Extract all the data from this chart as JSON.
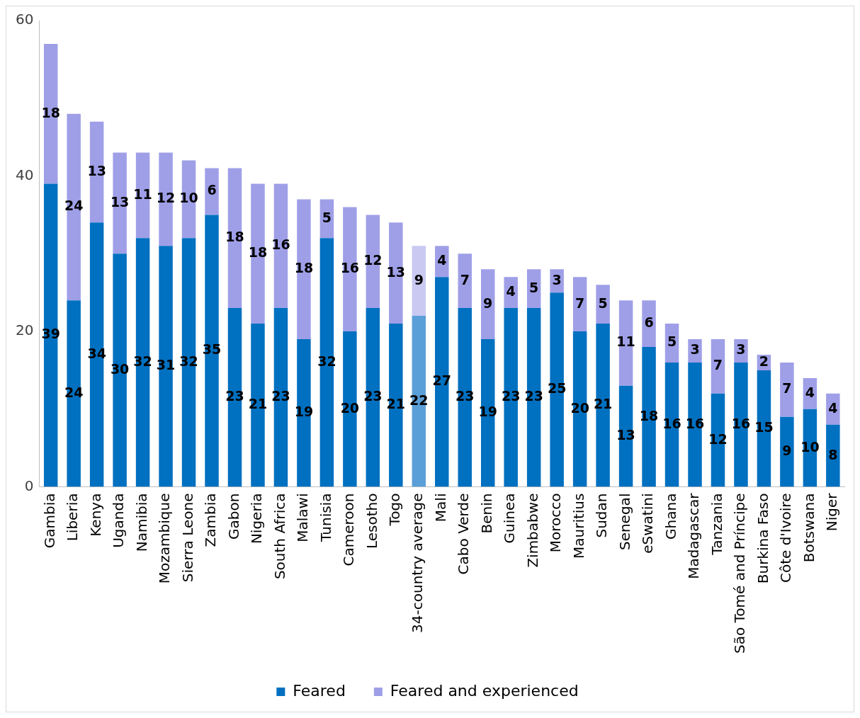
{
  "chart_data": {
    "type": "bar",
    "stacked": true,
    "categories": [
      "Gambia",
      "Liberia",
      "Kenya",
      "Uganda",
      "Namibia",
      "Mozambique",
      "Sierra Leone",
      "Zambia",
      "Gabon",
      "Nigeria",
      "South Africa",
      "Malawi",
      "Tunisia",
      "Cameroon",
      "Lesotho",
      "Togo",
      "34-country average",
      "Mali",
      "Cabo Verde",
      "Benin",
      "Guinea",
      "Zimbabwe",
      "Morocco",
      "Mauritius",
      "Sudan",
      "Senegal",
      "eSwatini",
      "Ghana",
      "Madagascar",
      "Tanzania",
      "São Tomé and Príncipe",
      "Burkina Faso",
      "Côte d'Ivoire",
      "Botswana",
      "Niger"
    ],
    "series": [
      {
        "name": "Feared",
        "color": "#0070c0",
        "colors": [
          "#0070c0",
          "#0070c0",
          "#0070c0",
          "#0070c0",
          "#0070c0",
          "#0070c0",
          "#0070c0",
          "#0070c0",
          "#0070c0",
          "#0070c0",
          "#0070c0",
          "#0070c0",
          "#0070c0",
          "#0070c0",
          "#0070c0",
          "#0070c0",
          "#5b9fd8",
          "#0070c0",
          "#0070c0",
          "#0070c0",
          "#0070c0",
          "#0070c0",
          "#0070c0",
          "#0070c0",
          "#0070c0",
          "#0070c0",
          "#0070c0",
          "#0070c0",
          "#0070c0",
          "#0070c0",
          "#0070c0",
          "#0070c0",
          "#0070c0",
          "#0070c0",
          "#0070c0"
        ],
        "values": [
          39,
          24,
          34,
          30,
          32,
          31,
          32,
          35,
          23,
          21,
          23,
          19,
          32,
          20,
          23,
          21,
          22,
          27,
          23,
          19,
          23,
          23,
          25,
          20,
          21,
          13,
          18,
          16,
          16,
          12,
          16,
          15,
          9,
          10,
          8
        ]
      },
      {
        "name": "Feared and experienced",
        "color": "#9f9fe8",
        "colors": [
          "#9f9fe8",
          "#9f9fe8",
          "#9f9fe8",
          "#9f9fe8",
          "#9f9fe8",
          "#9f9fe8",
          "#9f9fe8",
          "#9f9fe8",
          "#9f9fe8",
          "#9f9fe8",
          "#9f9fe8",
          "#9f9fe8",
          "#9f9fe8",
          "#9f9fe8",
          "#9f9fe8",
          "#9f9fe8",
          "#c9c9f2",
          "#9f9fe8",
          "#9f9fe8",
          "#9f9fe8",
          "#9f9fe8",
          "#9f9fe8",
          "#9f9fe8",
          "#9f9fe8",
          "#9f9fe8",
          "#9f9fe8",
          "#9f9fe8",
          "#9f9fe8",
          "#9f9fe8",
          "#9f9fe8",
          "#9f9fe8",
          "#9f9fe8",
          "#9f9fe8",
          "#9f9fe8",
          "#9f9fe8"
        ],
        "values": [
          18,
          24,
          13,
          13,
          11,
          12,
          10,
          6,
          18,
          18,
          16,
          18,
          5,
          16,
          12,
          13,
          9,
          4,
          7,
          9,
          4,
          5,
          3,
          7,
          5,
          11,
          6,
          5,
          3,
          7,
          3,
          2,
          7,
          4,
          4
        ]
      }
    ],
    "ylim": [
      0,
      60
    ],
    "yticks": [
      0,
      20,
      40,
      60
    ],
    "grid": false,
    "legend": "bottom",
    "data_labels": true
  }
}
